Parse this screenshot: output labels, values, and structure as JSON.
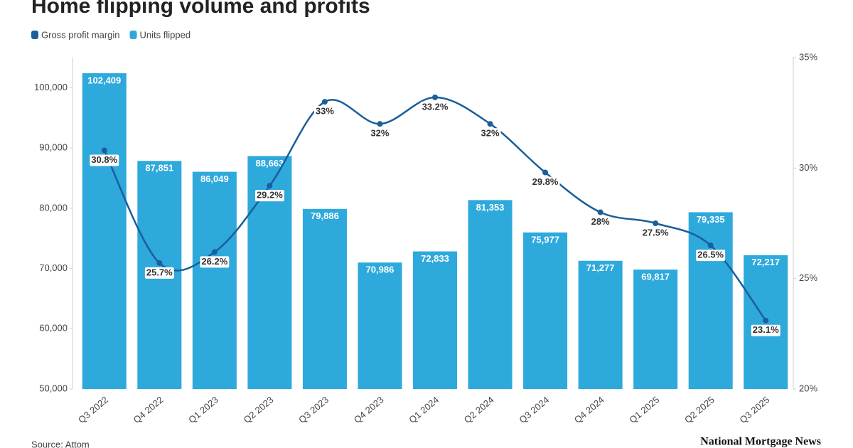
{
  "chart_data": {
    "type": "bar-line",
    "title": "Home flipping volume and profits",
    "source": "Source: Attom",
    "brand": "National Mortgage News",
    "categories": [
      "Q3 2022",
      "Q4 2022",
      "Q1 2023",
      "Q2 2023",
      "Q3 2023",
      "Q4 2023",
      "Q1 2024",
      "Q2 2024",
      "Q3 2024",
      "Q4 2024",
      "Q1 2025",
      "Q2 2025",
      "Q3 2025"
    ],
    "series": [
      {
        "name": "Gross profit margin",
        "color": "#1a5e9a",
        "type": "line",
        "axis": "y2",
        "values": [
          30.8,
          25.7,
          26.2,
          29.2,
          33,
          32,
          33.2,
          32,
          29.8,
          28,
          27.5,
          26.5,
          23.1
        ],
        "value_labels": [
          "30.8%",
          "25.7%",
          "26.2%",
          "29.2%",
          "33%",
          "32%",
          "33.2%",
          "32%",
          "29.8%",
          "28%",
          "27.5%",
          "26.5%",
          "23.1%"
        ]
      },
      {
        "name": "Units flipped",
        "color": "#2ea9dc",
        "type": "bar",
        "values": [
          102409,
          87851,
          86049,
          88663,
          79886,
          70986,
          72833,
          81353,
          75977,
          71277,
          69817,
          79335,
          72217
        ],
        "value_labels": [
          "102,409",
          "87,851",
          "86,049",
          "88,663",
          "79,886",
          "70,986",
          "72,833",
          "81,353",
          "75,977",
          "71,277",
          "69,817",
          "79,335",
          "72,217"
        ]
      }
    ],
    "ylim": [
      50000,
      105000
    ],
    "yticks": [
      {
        "value": 50000,
        "label": "50,000"
      },
      {
        "value": 60000,
        "label": "60,000"
      },
      {
        "value": 70000,
        "label": "70,000"
      },
      {
        "value": 80000,
        "label": "80,000"
      },
      {
        "value": 90000,
        "label": "90,000"
      },
      {
        "value": 100000,
        "label": "100,000"
      }
    ],
    "y2lim": [
      20,
      35
    ],
    "y2ticks": [
      {
        "value": 20,
        "label": "20%"
      },
      {
        "value": 25,
        "label": "25%"
      },
      {
        "value": 30,
        "label": "30%"
      },
      {
        "value": 35,
        "label": "35%"
      }
    ]
  }
}
